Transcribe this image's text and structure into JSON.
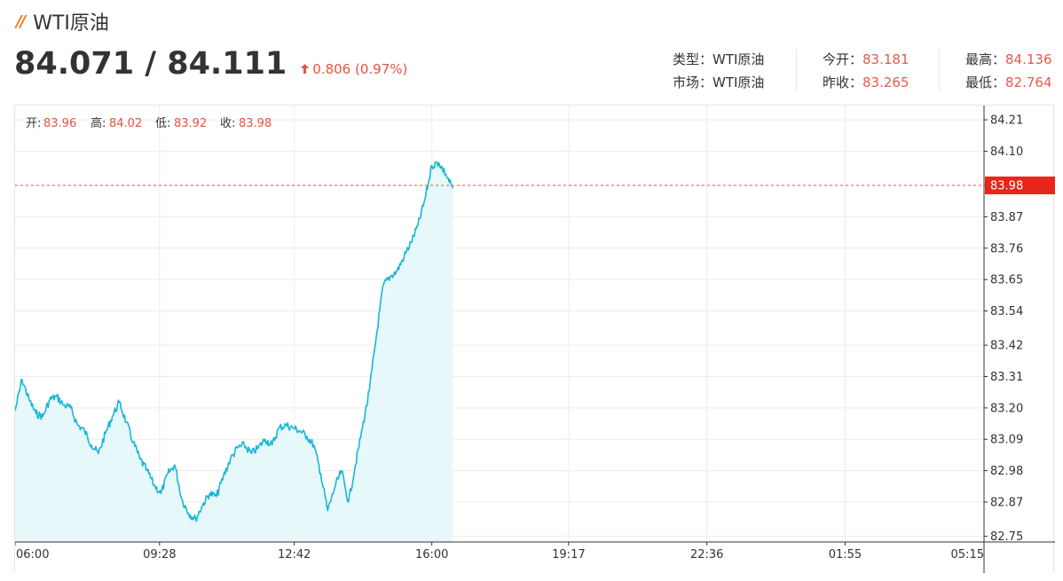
{
  "header": {
    "title": "WTI原油",
    "price": "84.071 / 84.111",
    "change": "0.806 (0.97%)",
    "accent_color": "#e5543f",
    "brand_mark_color": "#f07a1a",
    "change_icon": "up-arrow-icon"
  },
  "info": {
    "type_label": "类型：",
    "type_value": "WTI原油",
    "market_label": "市场：",
    "market_value": "WTI原油",
    "open_label": "今开：",
    "open_value": "83.181",
    "prev_close_label": "昨收：",
    "prev_close_value": "83.265",
    "high_label": "最高：",
    "high_value": "84.136",
    "low_label": "最低：",
    "low_value": "82.764"
  },
  "ohlc": {
    "open_label": "开:",
    "open": "83.96",
    "high_label": "高:",
    "high": "84.02",
    "low_label": "低:",
    "low": "83.92",
    "close_label": "收:",
    "close": "83.98"
  },
  "current_price_tag": "83.98",
  "chart_data": {
    "type": "area",
    "title": "",
    "xlabel": "",
    "ylabel": "",
    "line_color": "#19b6d6",
    "fill_color": "#e6f8fa",
    "ylim": [
      82.73,
      84.26
    ],
    "y_ticks": [
      "84.21",
      "84.10",
      "83.98",
      "83.87",
      "83.76",
      "83.65",
      "83.54",
      "83.42",
      "83.31",
      "83.20",
      "83.09",
      "82.98",
      "82.87",
      "82.75"
    ],
    "x_ticks": [
      "06:00",
      "09:28",
      "12:42",
      "16:00",
      "19:17",
      "22:36",
      "01:55",
      "05:15"
    ],
    "x_axis_start": "06:00",
    "current_level": 83.98,
    "series": [
      {
        "x": [
          "06:00",
          "06:10",
          "06:20",
          "06:30",
          "06:40",
          "06:50",
          "07:00",
          "07:10",
          "07:20",
          "07:30",
          "07:40",
          "07:50",
          "08:00",
          "08:10",
          "08:20",
          "08:30",
          "08:40",
          "08:50",
          "09:00",
          "09:10",
          "09:20",
          "09:30",
          "09:40",
          "09:50",
          "10:00",
          "10:10",
          "10:20",
          "10:30",
          "10:40",
          "10:50",
          "11:00",
          "11:10",
          "11:20",
          "11:30",
          "11:40",
          "11:50",
          "12:00",
          "12:10",
          "12:20",
          "12:30",
          "12:40",
          "12:50",
          "13:00",
          "13:10",
          "13:20",
          "13:30",
          "13:40",
          "13:50",
          "14:00",
          "14:10",
          "14:20",
          "14:30",
          "14:40",
          "14:50",
          "15:00",
          "15:10",
          "15:20",
          "15:30",
          "15:40",
          "15:50",
          "16:00",
          "16:10",
          "16:20",
          "16:30"
        ],
        "values": [
          83.19,
          83.3,
          83.23,
          83.18,
          83.17,
          83.23,
          83.24,
          83.21,
          83.2,
          83.14,
          83.12,
          83.07,
          83.04,
          83.11,
          83.17,
          83.22,
          83.15,
          83.08,
          83.02,
          82.98,
          82.93,
          82.9,
          82.97,
          83.0,
          82.88,
          82.83,
          82.81,
          82.86,
          82.9,
          82.89,
          82.96,
          83.02,
          83.06,
          83.07,
          83.04,
          83.06,
          83.09,
          83.07,
          83.13,
          83.14,
          83.13,
          83.12,
          83.1,
          83.07,
          82.97,
          82.84,
          82.92,
          82.98,
          82.87,
          83.0,
          83.13,
          83.26,
          83.45,
          83.63,
          83.66,
          83.68,
          83.73,
          83.78,
          83.84,
          83.93,
          84.05,
          84.06,
          84.02,
          83.97
        ]
      }
    ]
  }
}
